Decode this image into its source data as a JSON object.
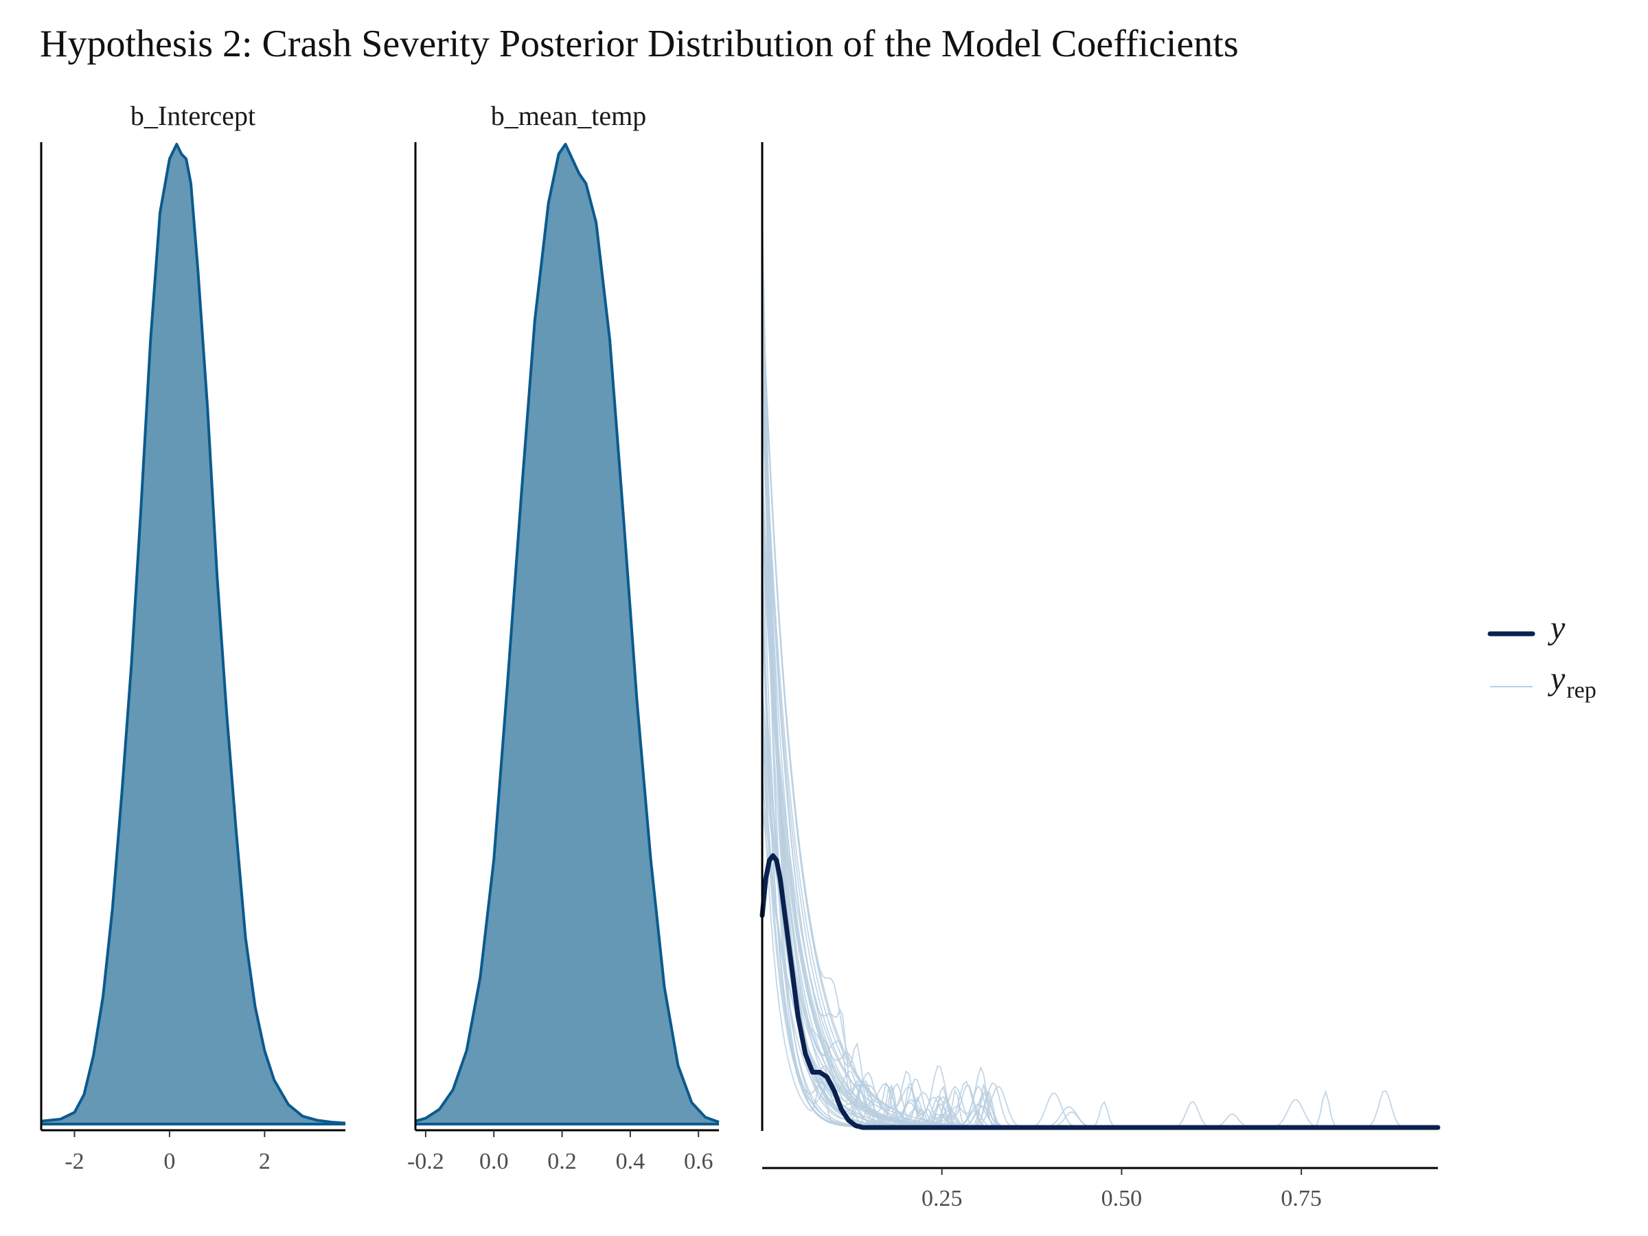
{
  "title": "Hypothesis 2: Crash Severity Posterior Distribution of the Model Coefficients",
  "chart_data": [
    {
      "type": "area",
      "panel": "b_Intercept",
      "title": "b_Intercept",
      "xlim": [
        -2.7,
        3.7
      ],
      "xticks": [
        "-2",
        "0",
        "2"
      ],
      "xtick_values": [
        -2,
        0,
        2
      ],
      "fill_color": "#6498b5",
      "line_color": "#0b5a8e",
      "density": {
        "x": [
          -2.7,
          -2.3,
          -2.0,
          -1.8,
          -1.6,
          -1.4,
          -1.2,
          -1.0,
          -0.8,
          -0.6,
          -0.4,
          -0.2,
          0.0,
          0.15,
          0.25,
          0.35,
          0.45,
          0.6,
          0.8,
          1.0,
          1.2,
          1.4,
          1.6,
          1.8,
          2.0,
          2.2,
          2.5,
          2.8,
          3.1,
          3.4,
          3.7
        ],
        "y": [
          0.003,
          0.005,
          0.012,
          0.03,
          0.07,
          0.13,
          0.22,
          0.34,
          0.47,
          0.63,
          0.8,
          0.93,
          0.985,
          1.0,
          0.99,
          0.985,
          0.96,
          0.87,
          0.73,
          0.56,
          0.42,
          0.3,
          0.19,
          0.12,
          0.075,
          0.045,
          0.02,
          0.008,
          0.004,
          0.002,
          0.001
        ]
      }
    },
    {
      "type": "area",
      "panel": "b_mean_temp",
      "title": "b_mean_temp",
      "xlim": [
        -0.23,
        0.66
      ],
      "xticks": [
        "-0.2",
        "0.0",
        "0.2",
        "0.4",
        "0.6"
      ],
      "xtick_values": [
        -0.2,
        0.0,
        0.2,
        0.4,
        0.6
      ],
      "fill_color": "#6498b5",
      "line_color": "#0b5a8e",
      "density": {
        "x": [
          -0.23,
          -0.2,
          -0.16,
          -0.12,
          -0.08,
          -0.04,
          0.0,
          0.04,
          0.08,
          0.12,
          0.16,
          0.19,
          0.21,
          0.23,
          0.25,
          0.27,
          0.3,
          0.34,
          0.38,
          0.42,
          0.46,
          0.5,
          0.54,
          0.58,
          0.62,
          0.66
        ],
        "y": [
          0.003,
          0.006,
          0.015,
          0.035,
          0.075,
          0.15,
          0.27,
          0.45,
          0.64,
          0.82,
          0.94,
          0.99,
          1.0,
          0.985,
          0.97,
          0.96,
          0.92,
          0.8,
          0.62,
          0.43,
          0.27,
          0.14,
          0.06,
          0.022,
          0.007,
          0.002
        ]
      }
    },
    {
      "type": "line",
      "panel": "pp_check",
      "xlim": [
        0.0,
        0.94
      ],
      "xticks": [
        "0.25",
        "0.50",
        "0.75"
      ],
      "xtick_values": [
        0.25,
        0.5,
        0.75
      ],
      "ylim": [
        0,
        1.0
      ],
      "series": [
        {
          "name": "y",
          "color": "#0a2150",
          "x": [
            0.0,
            0.005,
            0.01,
            0.015,
            0.02,
            0.025,
            0.03,
            0.04,
            0.05,
            0.06,
            0.07,
            0.08,
            0.09,
            0.1,
            0.11,
            0.12,
            0.13,
            0.14,
            0.16,
            0.2,
            0.3,
            0.5,
            0.7,
            0.94
          ],
          "y": [
            0.23,
            0.27,
            0.29,
            0.295,
            0.29,
            0.27,
            0.24,
            0.18,
            0.12,
            0.08,
            0.06,
            0.06,
            0.055,
            0.04,
            0.02,
            0.008,
            0.002,
            0.0,
            0.0,
            0.0,
            0.0,
            0.0,
            0.0,
            0.0
          ]
        },
        {
          "name": "rep",
          "color": "#b9cfe1",
          "count": 44
        }
      ],
      "legend": {
        "position": "right",
        "items": [
          {
            "label": "y",
            "sub": ""
          },
          {
            "label": "y",
            "sub": "rep"
          }
        ]
      }
    }
  ]
}
